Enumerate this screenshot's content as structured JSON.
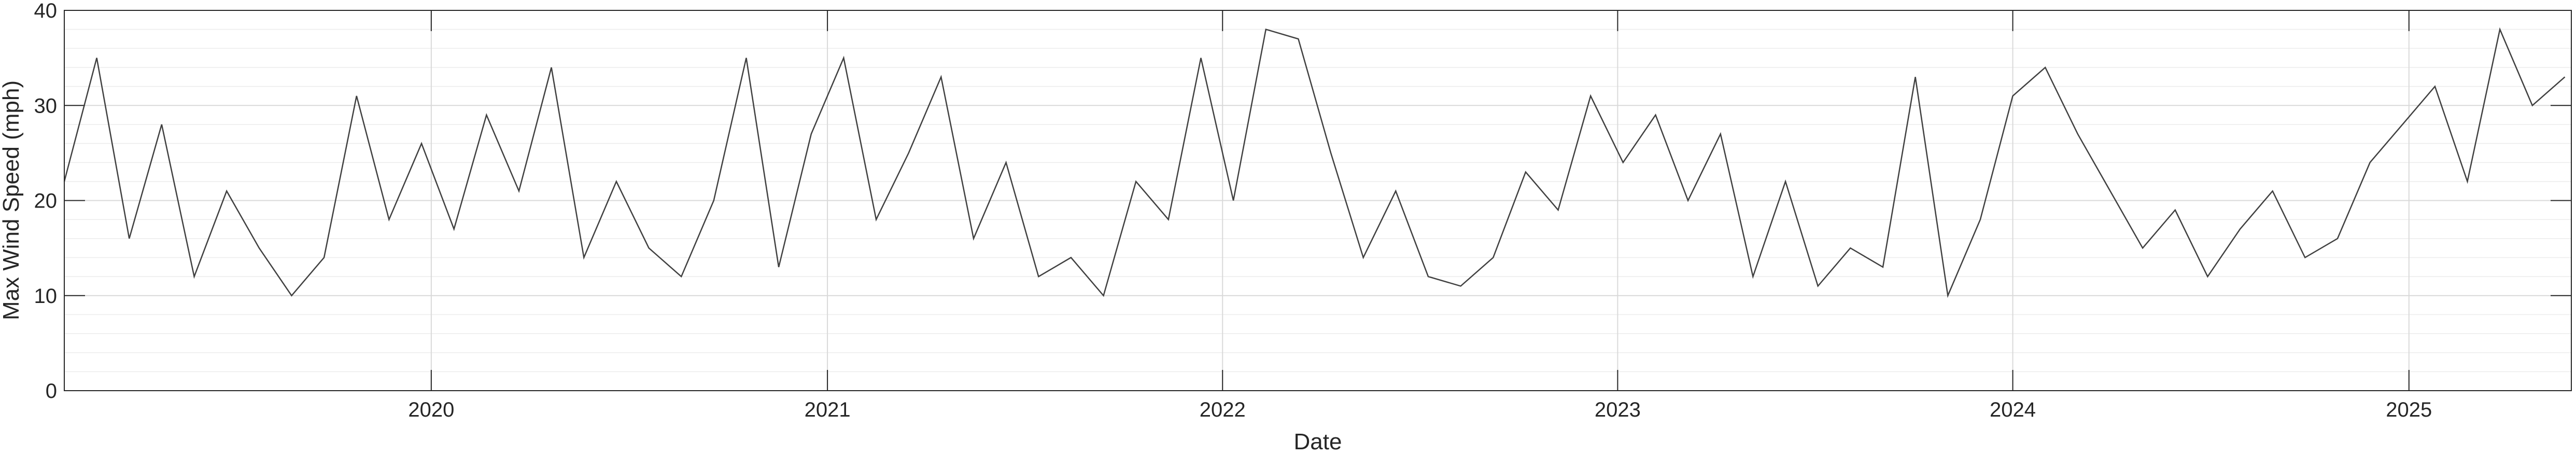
{
  "chart_data": {
    "type": "line",
    "title": "",
    "xlabel": "Date",
    "ylabel": "Max Wind Speed (mph)",
    "xlim": [
      "2019-01-27",
      "2025-05-31"
    ],
    "ylim": [
      0,
      40
    ],
    "x_ticks": [
      "2020",
      "2021",
      "2022",
      "2023",
      "2024",
      "2025"
    ],
    "y_ticks": [
      "0",
      "10",
      "20",
      "30",
      "40"
    ],
    "grid": true,
    "minor_grid_y": true,
    "line_color": "#404040",
    "series": [
      {
        "x": [
          "2019-01-27",
          "2019-02-26",
          "2019-03-28",
          "2019-04-27",
          "2019-05-27",
          "2019-06-26",
          "2019-07-26",
          "2019-08-25",
          "2019-09-24",
          "2019-10-24",
          "2019-11-23",
          "2019-12-23",
          "2020-01-22",
          "2020-02-21",
          "2020-03-22",
          "2020-04-21",
          "2020-05-21",
          "2020-06-20",
          "2020-07-20",
          "2020-08-19",
          "2020-09-18",
          "2020-10-18",
          "2020-11-17",
          "2020-12-17",
          "2021-01-16",
          "2021-02-15",
          "2021-03-17",
          "2021-04-16",
          "2021-05-16",
          "2021-06-15",
          "2021-07-15",
          "2021-08-14",
          "2021-09-13",
          "2021-10-13",
          "2021-11-12",
          "2021-12-12",
          "2022-01-11",
          "2022-02-10",
          "2022-03-12",
          "2022-04-11",
          "2022-05-11",
          "2022-06-10",
          "2022-07-10",
          "2022-08-09",
          "2022-09-08",
          "2022-10-08",
          "2022-11-07",
          "2022-12-07",
          "2023-01-06",
          "2023-02-05",
          "2023-03-07",
          "2023-04-06",
          "2023-05-06",
          "2023-06-05",
          "2023-07-05",
          "2023-08-04",
          "2023-09-03",
          "2023-10-03",
          "2023-11-02",
          "2023-12-02",
          "2024-01-01",
          "2024-01-31",
          "2024-03-01",
          "2024-03-31",
          "2024-04-30",
          "2024-05-30",
          "2024-06-29",
          "2024-07-29",
          "2024-08-28",
          "2024-09-27",
          "2024-10-27",
          "2024-11-26",
          "2024-12-26",
          "2025-01-25",
          "2025-02-24",
          "2025-03-26",
          "2025-04-25",
          "2025-05-25"
        ],
        "values": [
          22,
          35,
          16,
          28,
          12,
          21,
          15,
          10,
          14,
          31,
          18,
          26,
          17,
          29,
          21,
          34,
          14,
          22,
          15,
          12,
          20,
          35,
          13,
          27,
          35,
          18,
          25,
          33,
          16,
          24,
          12,
          14,
          10,
          22,
          18,
          35,
          20,
          38,
          37,
          25,
          14,
          21,
          12,
          11,
          14,
          23,
          19,
          31,
          24,
          29,
          20,
          27,
          12,
          22,
          11,
          15,
          13,
          33,
          10,
          18,
          31,
          34,
          27,
          21,
          15,
          19,
          12,
          17,
          21,
          14,
          16,
          24,
          28,
          32,
          22,
          38,
          30,
          33
        ]
      }
    ]
  }
}
